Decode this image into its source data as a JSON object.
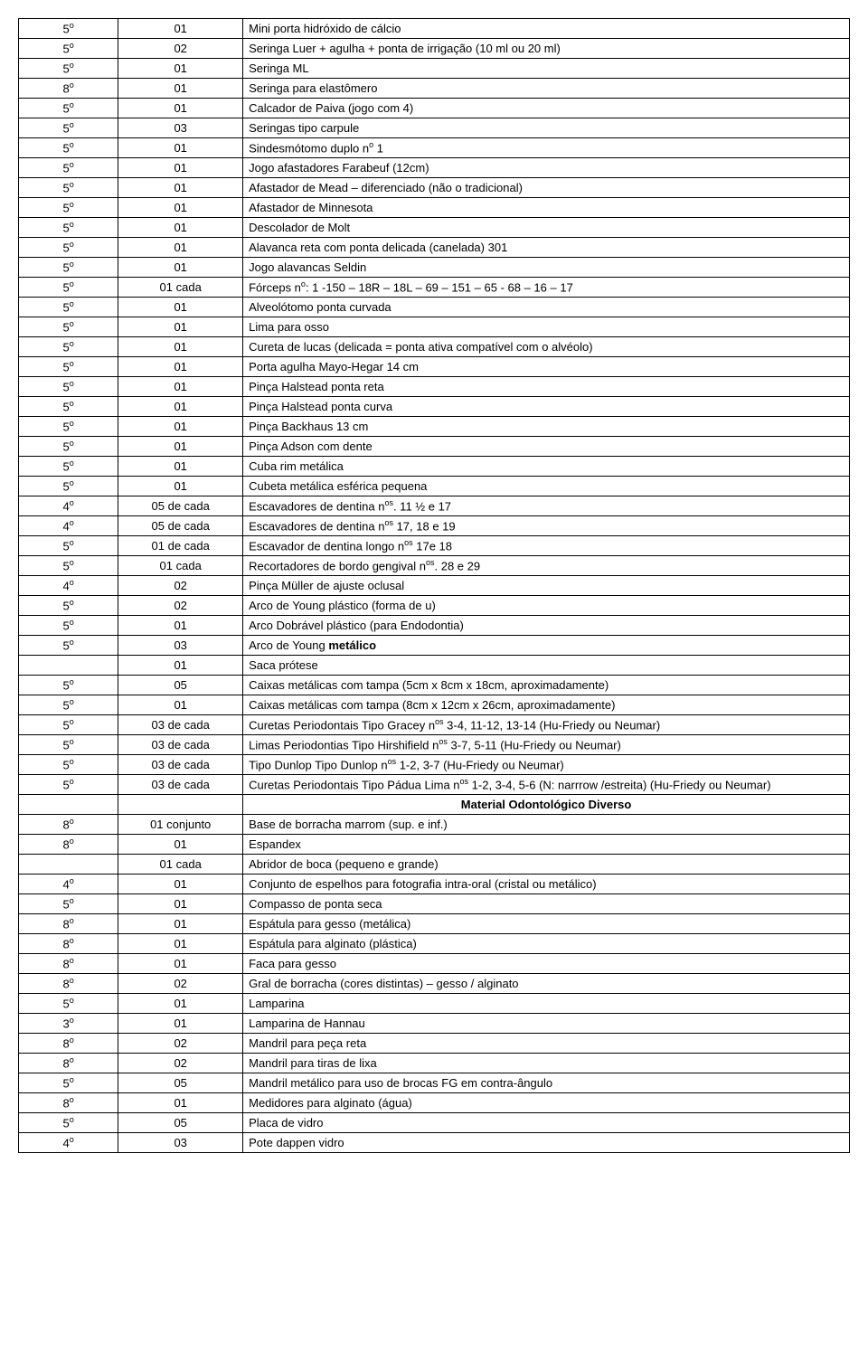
{
  "table": {
    "rows": [
      {
        "sem": "5º",
        "qty": "01",
        "desc": "Mini porta hidróxido de cálcio"
      },
      {
        "sem": "5º",
        "qty": "02",
        "desc": "Seringa Luer + agulha + ponta de irrigação (10 ml ou 20 ml)"
      },
      {
        "sem": "5º",
        "qty": "01",
        "desc": "Seringa ML"
      },
      {
        "sem": "8º",
        "qty": "01",
        "desc": "Seringa para elastômero"
      },
      {
        "sem": "5º",
        "qty": "01",
        "desc": "Calcador de Paiva (jogo com 4)"
      },
      {
        "sem": "5º",
        "qty": "03",
        "desc": "Seringas tipo carpule"
      },
      {
        "sem": "5º",
        "qty": "01",
        "desc": "Sindesmótomo duplo nº 1"
      },
      {
        "sem": "5º",
        "qty": "01",
        "desc": "Jogo afastadores Farabeuf (12cm)"
      },
      {
        "sem": "5º",
        "qty": "01",
        "desc": "Afastador de Mead – diferenciado (não o tradicional)"
      },
      {
        "sem": "5º",
        "qty": "01",
        "desc": "Afastador de Minnesota"
      },
      {
        "sem": "5º",
        "qty": "01",
        "desc": "Descolador de Molt"
      },
      {
        "sem": "5º",
        "qty": "01",
        "desc": "Alavanca reta com ponta delicada (canelada) 301"
      },
      {
        "sem": "5º",
        "qty": "01",
        "desc": "Jogo alavancas Seldin"
      },
      {
        "sem": "5º",
        "qty": "01 cada",
        "desc": "Fórceps nº: 1 -150 – 18R – 18L – 69 – 151 – 65 - 68 – 16 – 17"
      },
      {
        "sem": "5º",
        "qty": "01",
        "desc": "Alveolótomo  ponta curvada"
      },
      {
        "sem": "5º",
        "qty": "01",
        "desc": "Lima para osso"
      },
      {
        "sem": "5º",
        "qty": "01",
        "desc": "Cureta de lucas (delicada = ponta ativa compatível com o alvéolo)"
      },
      {
        "sem": "5º",
        "qty": "01",
        "desc": "Porta agulha Mayo-Hegar 14 cm"
      },
      {
        "sem": "5º",
        "qty": "01",
        "desc": "Pinça Halstead ponta reta"
      },
      {
        "sem": "5º",
        "qty": "01",
        "desc": "Pinça Halstead ponta curva"
      },
      {
        "sem": "5º",
        "qty": "01",
        "desc": "Pinça Backhaus 13 cm"
      },
      {
        "sem": "5º",
        "qty": "01",
        "desc": "Pinça Adson com dente"
      },
      {
        "sem": "5º",
        "qty": "01",
        "desc": "Cuba rim metálica"
      },
      {
        "sem": "5º",
        "qty": "01",
        "desc": "Cubeta metálica esférica pequena"
      },
      {
        "sem": "4º",
        "qty": "05 de cada",
        "desc": "Escavadores de dentina nºs. 11 ½ e 17"
      },
      {
        "sem": "4º",
        "qty": "05 de cada",
        "desc": "Escavadores de dentina nºs 17, 18 e 19"
      },
      {
        "sem": "5º",
        "qty": "01 de cada",
        "desc": "Escavador de dentina longo nºs 17e 18"
      },
      {
        "sem": "5º",
        "qty": "01 cada",
        "desc": "Recortadores de bordo gengival nºs. 28 e 29"
      },
      {
        "sem": "4º",
        "qty": "02",
        "desc": "Pinça Müller de ajuste oclusal"
      },
      {
        "sem": "5º",
        "qty": "02",
        "desc": "Arco de Young plástico (forma de u)"
      },
      {
        "sem": "5º",
        "qty": "01",
        "desc": "Arco Dobrável plástico (para Endodontia)"
      },
      {
        "sem": "5º",
        "qty": "03",
        "desc_html": "Arco de Young <b>metálico</b>"
      },
      {
        "sem": "",
        "qty": "01",
        "desc": "Saca prótese"
      },
      {
        "sem": "5º",
        "qty": "05",
        "desc": "Caixas metálicas com tampa (5cm x 8cm x 18cm, aproximadamente)"
      },
      {
        "sem": "5º",
        "qty": "01",
        "desc": "Caixas metálicas com tampa (8cm x 12cm x 26cm, aproximadamente)"
      },
      {
        "sem": "5º",
        "qty": "03 de cada",
        "desc": "Curetas Periodontais Tipo Gracey nºs 3-4, 11-12, 13-14 (Hu-Friedy ou Neumar)"
      },
      {
        "sem": "5º",
        "qty": "03 de cada",
        "desc": "Limas Periodontias Tipo Hirshifield nºs 3-7, 5-11 (Hu-Friedy ou Neumar)"
      },
      {
        "sem": "5º",
        "qty": "03 de cada",
        "desc": "Tipo Dunlop Tipo Dunlop nºs 1-2, 3-7 (Hu-Friedy ou Neumar)"
      },
      {
        "sem": "5º",
        "qty": "03 de cada",
        "desc": "Curetas Periodontais  Tipo Pádua Lima nºs 1-2, 3-4, 5-6 (N: narrrow /estreita) (Hu-Friedy ou Neumar)"
      },
      {
        "header": true,
        "label": "Material Odontológico Diverso"
      },
      {
        "sem": "8º",
        "qty": "01 conjunto",
        "desc": "Base de borracha marrom (sup. e inf.)"
      },
      {
        "sem": "8º",
        "qty": "01",
        "desc": "Espandex"
      },
      {
        "sem": "",
        "qty": "01 cada",
        "desc": "Abridor de boca (pequeno e grande)"
      },
      {
        "sem": "4º",
        "qty": "01",
        "desc": "Conjunto de espelhos para fotografia intra-oral (cristal ou metálico)"
      },
      {
        "sem": "5º",
        "qty": "01",
        "desc": "Compasso de ponta seca"
      },
      {
        "sem": "8º",
        "qty": "01",
        "desc": "Espátula para gesso (metálica)"
      },
      {
        "sem": "8º",
        "qty": "01",
        "desc": "Espátula para alginato (plástica)"
      },
      {
        "sem": "8º",
        "qty": "01",
        "desc": "Faca para gesso"
      },
      {
        "sem": "8º",
        "qty": "02",
        "desc": "Gral de borracha (cores distintas) – gesso / alginato"
      },
      {
        "sem": "5º",
        "qty": "01",
        "desc": "Lamparina"
      },
      {
        "sem": "3º",
        "qty": "01",
        "desc": "Lamparina de Hannau"
      },
      {
        "sem": "8º",
        "qty": "02",
        "desc": "Mandril para peça reta"
      },
      {
        "sem": "8º",
        "qty": "02",
        "desc": "Mandril para tiras de lixa"
      },
      {
        "sem": "5º",
        "qty": "05",
        "desc": "Mandril metálico para uso de brocas FG em contra-ângulo"
      },
      {
        "sem": "8º",
        "qty": "01",
        "desc": "Medidores para alginato (água)"
      },
      {
        "sem": "5º",
        "qty": "05",
        "desc": "Placa de vidro"
      },
      {
        "sem": "4º",
        "qty": "03",
        "desc": "Pote dappen vidro"
      }
    ]
  }
}
